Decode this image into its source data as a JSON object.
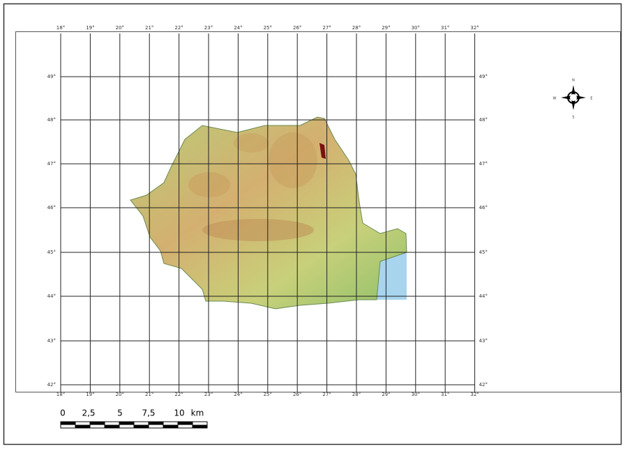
{
  "longitude_labels": [
    "18°",
    "19°",
    "20°",
    "21°",
    "22°",
    "23°",
    "24°",
    "25°",
    "26°",
    "27°",
    "28°",
    "29°",
    "30°",
    "31°",
    "32°"
  ],
  "latitude_labels": [
    "49°",
    "48°",
    "47°",
    "46°",
    "45°",
    "44°",
    "43°",
    "42°"
  ],
  "compass": {
    "north": "N",
    "east": "E",
    "south": "S",
    "west": "W"
  },
  "scale_bar": {
    "labels": [
      "0",
      "2,5",
      "5",
      "7,5",
      "10"
    ],
    "unit": "km"
  }
}
